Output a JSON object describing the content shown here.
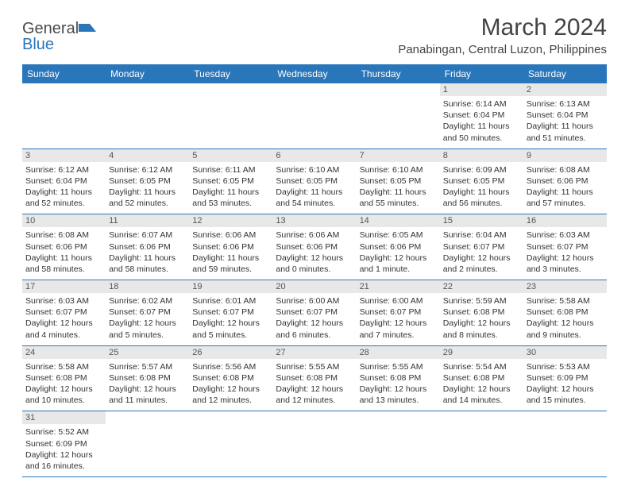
{
  "brand": {
    "name_part1": "General",
    "name_part2": "Blue"
  },
  "title": "March 2024",
  "location": "Panabingan, Central Luzon, Philippines",
  "colors": {
    "header_bg": "#2976bb",
    "header_fg": "#ffffff",
    "daynum_bg": "#e8e8e8",
    "rule": "#2976bb"
  },
  "weekdays": [
    "Sunday",
    "Monday",
    "Tuesday",
    "Wednesday",
    "Thursday",
    "Friday",
    "Saturday"
  ],
  "grid": [
    [
      null,
      null,
      null,
      null,
      null,
      {
        "n": "1",
        "sr": "Sunrise: 6:14 AM",
        "ss": "Sunset: 6:04 PM",
        "dl": "Daylight: 11 hours and 50 minutes."
      },
      {
        "n": "2",
        "sr": "Sunrise: 6:13 AM",
        "ss": "Sunset: 6:04 PM",
        "dl": "Daylight: 11 hours and 51 minutes."
      }
    ],
    [
      {
        "n": "3",
        "sr": "Sunrise: 6:12 AM",
        "ss": "Sunset: 6:04 PM",
        "dl": "Daylight: 11 hours and 52 minutes."
      },
      {
        "n": "4",
        "sr": "Sunrise: 6:12 AM",
        "ss": "Sunset: 6:05 PM",
        "dl": "Daylight: 11 hours and 52 minutes."
      },
      {
        "n": "5",
        "sr": "Sunrise: 6:11 AM",
        "ss": "Sunset: 6:05 PM",
        "dl": "Daylight: 11 hours and 53 minutes."
      },
      {
        "n": "6",
        "sr": "Sunrise: 6:10 AM",
        "ss": "Sunset: 6:05 PM",
        "dl": "Daylight: 11 hours and 54 minutes."
      },
      {
        "n": "7",
        "sr": "Sunrise: 6:10 AM",
        "ss": "Sunset: 6:05 PM",
        "dl": "Daylight: 11 hours and 55 minutes."
      },
      {
        "n": "8",
        "sr": "Sunrise: 6:09 AM",
        "ss": "Sunset: 6:05 PM",
        "dl": "Daylight: 11 hours and 56 minutes."
      },
      {
        "n": "9",
        "sr": "Sunrise: 6:08 AM",
        "ss": "Sunset: 6:06 PM",
        "dl": "Daylight: 11 hours and 57 minutes."
      }
    ],
    [
      {
        "n": "10",
        "sr": "Sunrise: 6:08 AM",
        "ss": "Sunset: 6:06 PM",
        "dl": "Daylight: 11 hours and 58 minutes."
      },
      {
        "n": "11",
        "sr": "Sunrise: 6:07 AM",
        "ss": "Sunset: 6:06 PM",
        "dl": "Daylight: 11 hours and 58 minutes."
      },
      {
        "n": "12",
        "sr": "Sunrise: 6:06 AM",
        "ss": "Sunset: 6:06 PM",
        "dl": "Daylight: 11 hours and 59 minutes."
      },
      {
        "n": "13",
        "sr": "Sunrise: 6:06 AM",
        "ss": "Sunset: 6:06 PM",
        "dl": "Daylight: 12 hours and 0 minutes."
      },
      {
        "n": "14",
        "sr": "Sunrise: 6:05 AM",
        "ss": "Sunset: 6:06 PM",
        "dl": "Daylight: 12 hours and 1 minute."
      },
      {
        "n": "15",
        "sr": "Sunrise: 6:04 AM",
        "ss": "Sunset: 6:07 PM",
        "dl": "Daylight: 12 hours and 2 minutes."
      },
      {
        "n": "16",
        "sr": "Sunrise: 6:03 AM",
        "ss": "Sunset: 6:07 PM",
        "dl": "Daylight: 12 hours and 3 minutes."
      }
    ],
    [
      {
        "n": "17",
        "sr": "Sunrise: 6:03 AM",
        "ss": "Sunset: 6:07 PM",
        "dl": "Daylight: 12 hours and 4 minutes."
      },
      {
        "n": "18",
        "sr": "Sunrise: 6:02 AM",
        "ss": "Sunset: 6:07 PM",
        "dl": "Daylight: 12 hours and 5 minutes."
      },
      {
        "n": "19",
        "sr": "Sunrise: 6:01 AM",
        "ss": "Sunset: 6:07 PM",
        "dl": "Daylight: 12 hours and 5 minutes."
      },
      {
        "n": "20",
        "sr": "Sunrise: 6:00 AM",
        "ss": "Sunset: 6:07 PM",
        "dl": "Daylight: 12 hours and 6 minutes."
      },
      {
        "n": "21",
        "sr": "Sunrise: 6:00 AM",
        "ss": "Sunset: 6:07 PM",
        "dl": "Daylight: 12 hours and 7 minutes."
      },
      {
        "n": "22",
        "sr": "Sunrise: 5:59 AM",
        "ss": "Sunset: 6:08 PM",
        "dl": "Daylight: 12 hours and 8 minutes."
      },
      {
        "n": "23",
        "sr": "Sunrise: 5:58 AM",
        "ss": "Sunset: 6:08 PM",
        "dl": "Daylight: 12 hours and 9 minutes."
      }
    ],
    [
      {
        "n": "24",
        "sr": "Sunrise: 5:58 AM",
        "ss": "Sunset: 6:08 PM",
        "dl": "Daylight: 12 hours and 10 minutes."
      },
      {
        "n": "25",
        "sr": "Sunrise: 5:57 AM",
        "ss": "Sunset: 6:08 PM",
        "dl": "Daylight: 12 hours and 11 minutes."
      },
      {
        "n": "26",
        "sr": "Sunrise: 5:56 AM",
        "ss": "Sunset: 6:08 PM",
        "dl": "Daylight: 12 hours and 12 minutes."
      },
      {
        "n": "27",
        "sr": "Sunrise: 5:55 AM",
        "ss": "Sunset: 6:08 PM",
        "dl": "Daylight: 12 hours and 12 minutes."
      },
      {
        "n": "28",
        "sr": "Sunrise: 5:55 AM",
        "ss": "Sunset: 6:08 PM",
        "dl": "Daylight: 12 hours and 13 minutes."
      },
      {
        "n": "29",
        "sr": "Sunrise: 5:54 AM",
        "ss": "Sunset: 6:08 PM",
        "dl": "Daylight: 12 hours and 14 minutes."
      },
      {
        "n": "30",
        "sr": "Sunrise: 5:53 AM",
        "ss": "Sunset: 6:09 PM",
        "dl": "Daylight: 12 hours and 15 minutes."
      }
    ],
    [
      {
        "n": "31",
        "sr": "Sunrise: 5:52 AM",
        "ss": "Sunset: 6:09 PM",
        "dl": "Daylight: 12 hours and 16 minutes."
      },
      null,
      null,
      null,
      null,
      null,
      null
    ]
  ]
}
